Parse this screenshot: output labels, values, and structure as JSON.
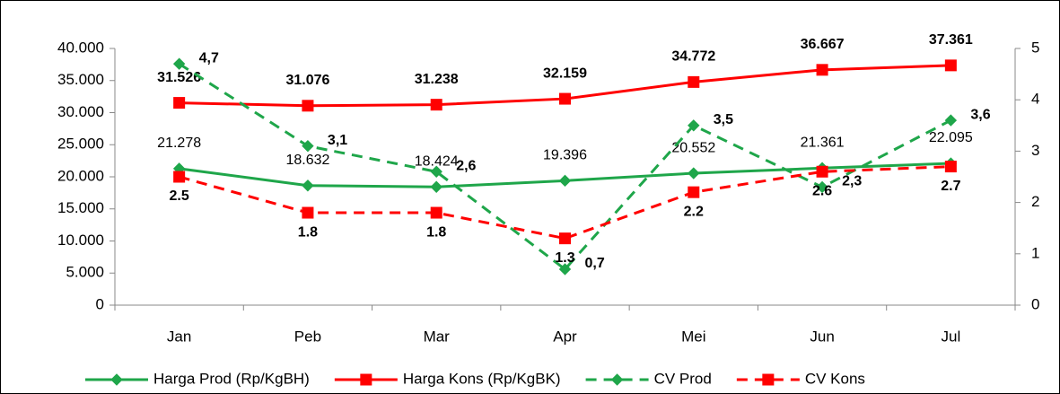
{
  "chart_data": {
    "type": "line",
    "categories": [
      "Jan",
      "Peb",
      "Mar",
      "Apr",
      "Mei",
      "Jun",
      "Jul"
    ],
    "ylim": [
      0,
      40000
    ],
    "yticks": [
      0,
      {
        "value": 5000,
        "label": "5.000"
      },
      {
        "value": 10000,
        "label": "10.000"
      },
      {
        "value": 15000,
        "label": "15.000"
      },
      {
        "value": 20000,
        "label": "20.000"
      },
      {
        "value": 25000,
        "label": "25.000"
      },
      {
        "value": 30000,
        "label": "30.000"
      },
      {
        "value": 35000,
        "label": "35.000"
      },
      {
        "value": 40000,
        "label": "40.000"
      }
    ],
    "y2lim": [
      0,
      5
    ],
    "y2ticks": [
      0,
      1,
      2,
      3,
      4,
      5
    ],
    "grid": false,
    "legend": "bottom",
    "series": [
      {
        "name": "Harga Prod (Rp/KgBH)",
        "color": "#1fa64a",
        "line_style": "solid",
        "marker": "diamond",
        "values": [
          21278,
          18632,
          18424,
          19396,
          20552,
          21361,
          22095
        ],
        "value_labels": [
          "21.278",
          "18.632",
          "18.424",
          "19.396",
          "20.552",
          "21.361",
          "22.095"
        ]
      },
      {
        "name": "Harga Kons (Rp/KgBK)",
        "color": "#ff0000",
        "line_style": "solid",
        "marker": "square",
        "values": [
          31526,
          31076,
          31238,
          32159,
          34772,
          36667,
          37361
        ],
        "value_labels": [
          "31.526",
          "31.076",
          "31.238",
          "32.159",
          "34.772",
          "36.667",
          "37.361"
        ]
      },
      {
        "name": "CV Prod",
        "color": "#1fa64a",
        "line_style": "dashed",
        "marker": "diamond",
        "axis": "y2",
        "values": [
          4.7,
          3.1,
          2.6,
          0.7,
          3.5,
          2.3,
          3.6
        ],
        "value_labels": [
          "4,7",
          "3,1",
          "2,6",
          "0,7",
          "3,5",
          "2,3",
          "3,6"
        ]
      },
      {
        "name": "CV Kons",
        "color": "#ff0000",
        "line_style": "dashed",
        "marker": "square",
        "axis": "y2",
        "values": [
          2.5,
          1.8,
          1.8,
          1.3,
          2.2,
          2.6,
          2.7
        ]
      }
    ]
  }
}
